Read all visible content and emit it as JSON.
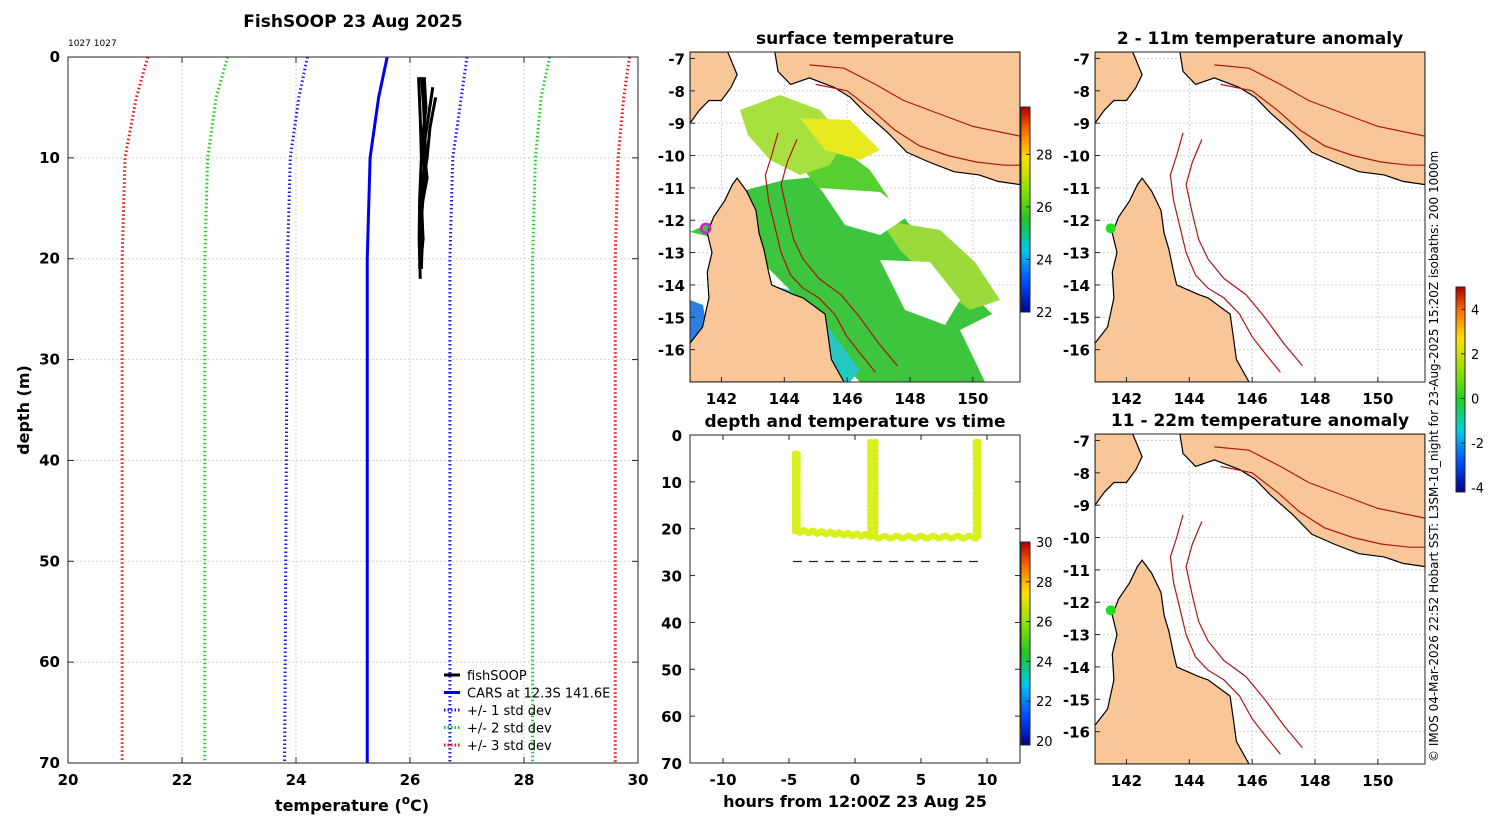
{
  "colors": {
    "land": "#f9c797",
    "obs": "#000000",
    "cars": "#0000ee",
    "std1": "#1a1aee",
    "std2": "#22cc22",
    "std3": "#ee1111",
    "scatter": "#d8f01c",
    "isobath": "#b01515",
    "marker_sst": "#cc22cc",
    "marker_anom": "#22dd22"
  },
  "chart_data": [
    {
      "type": "line",
      "title": "FishSOOP 23 Aug 2025",
      "annotation": "1027 1027",
      "xlabel": "temperature (oC)",
      "ylabel": "depth (m)",
      "xlim": [
        20,
        30
      ],
      "ylim": [
        0,
        70
      ],
      "xticks": [
        "20",
        "22",
        "24",
        "26",
        "28",
        "30"
      ],
      "yticks": [
        "0",
        "10",
        "20",
        "30",
        "40",
        "50",
        "60",
        "70"
      ],
      "legend": [
        "fishSOOP",
        "CARS at 12.3S 141.6E",
        "+/- 1 std dev",
        "+/- 2 std dev",
        "+/- 3 std dev"
      ],
      "legend_position": "bottom-right",
      "series": [
        {
          "name": "CARS",
          "style": "solid",
          "depth": [
            0,
            4,
            10,
            20,
            70
          ],
          "temp": [
            25.6,
            25.45,
            25.3,
            25.25,
            25.25
          ]
        },
        {
          "name": "+1 std",
          "style": "dotted",
          "depth": [
            0,
            4,
            10,
            20,
            70
          ],
          "temp": [
            27.0,
            26.9,
            26.75,
            26.7,
            26.7
          ]
        },
        {
          "name": "-1 std",
          "style": "dotted",
          "depth": [
            0,
            4,
            10,
            20,
            70
          ],
          "temp": [
            24.2,
            24.05,
            23.9,
            23.85,
            23.8
          ]
        },
        {
          "name": "+2 std",
          "style": "dotted",
          "depth": [
            0,
            4,
            10,
            20,
            70
          ],
          "temp": [
            28.45,
            28.3,
            28.2,
            28.15,
            28.15
          ]
        },
        {
          "name": "-2 std",
          "style": "dotted",
          "depth": [
            0,
            4,
            10,
            20,
            70
          ],
          "temp": [
            22.8,
            22.6,
            22.45,
            22.4,
            22.4
          ]
        },
        {
          "name": "+3 std",
          "style": "dotted",
          "depth": [
            0,
            4,
            10,
            20,
            70
          ],
          "temp": [
            29.85,
            29.75,
            29.65,
            29.6,
            29.6
          ]
        },
        {
          "name": "-3 std",
          "style": "dotted",
          "depth": [
            0,
            4,
            10,
            20,
            70
          ],
          "temp": [
            21.4,
            21.2,
            21.0,
            20.95,
            20.95
          ]
        }
      ],
      "profiles": [
        {
          "depth": [
            2,
            6,
            10,
            14,
            18,
            22
          ],
          "temp": [
            26.15,
            26.18,
            26.2,
            26.17,
            26.16,
            26.18
          ]
        },
        {
          "depth": [
            2,
            5,
            8,
            11,
            14,
            17,
            21
          ],
          "temp": [
            26.25,
            26.28,
            26.22,
            26.25,
            26.2,
            26.22,
            26.2
          ]
        },
        {
          "depth": [
            3,
            6,
            9,
            12,
            15,
            18,
            21
          ],
          "temp": [
            26.4,
            26.32,
            26.24,
            26.3,
            26.2,
            26.23,
            26.18
          ]
        },
        {
          "depth": [
            4,
            7,
            10,
            13,
            16,
            20
          ],
          "temp": [
            26.45,
            26.35,
            26.3,
            26.22,
            26.2,
            26.17
          ]
        },
        {
          "depth": [
            2,
            5,
            9,
            13,
            17,
            21
          ],
          "temp": [
            26.2,
            26.24,
            26.27,
            26.24,
            26.19,
            26.17
          ]
        }
      ]
    },
    {
      "type": "heatmap",
      "title": "surface temperature",
      "xticks": [
        "142",
        "144",
        "146",
        "148",
        "150"
      ],
      "yticks": [
        "-7",
        "-8",
        "-9",
        "-10",
        "-11",
        "-12",
        "-13",
        "-14",
        "-15",
        "-16"
      ],
      "xlim": [
        141,
        151.5
      ],
      "ylim": [
        -17,
        -6.8
      ],
      "colorbar": {
        "min": 22,
        "max": 29.8,
        "ticks": [
          "22",
          "24",
          "26",
          "28"
        ]
      },
      "marker": {
        "lon": 141.5,
        "lat": -12.25
      }
    },
    {
      "type": "heatmap",
      "title": "2 - 11m temperature anomaly",
      "xticks": [
        "142",
        "144",
        "146",
        "148",
        "150"
      ],
      "yticks": [
        "-7",
        "-8",
        "-9",
        "-10",
        "-11",
        "-12",
        "-13",
        "-14",
        "-15",
        "-16"
      ],
      "xlim": [
        141,
        151.5
      ],
      "ylim": [
        -17,
        -6.8
      ],
      "marker": {
        "lon": 141.5,
        "lat": -12.25
      }
    },
    {
      "type": "heatmap",
      "title": "11 - 22m temperature anomaly",
      "xticks": [
        "142",
        "144",
        "146",
        "148",
        "150"
      ],
      "yticks": [
        "-7",
        "-8",
        "-9",
        "-10",
        "-11",
        "-12",
        "-13",
        "-14",
        "-15",
        "-16"
      ],
      "xlim": [
        141,
        151.5
      ],
      "ylim": [
        -17,
        -6.8
      ],
      "marker": {
        "lon": 141.5,
        "lat": -12.25
      },
      "colorbar": {
        "min": -4.2,
        "max": 5.0,
        "ticks": [
          "-4",
          "-2",
          "0",
          "2",
          "4"
        ]
      }
    },
    {
      "type": "scatter",
      "title": "depth and temperature vs time",
      "xlabel": "hours from 12:00Z 23 Aug 25",
      "xlim": [
        -12.5,
        12.5
      ],
      "ylim": [
        0,
        70
      ],
      "xticks": [
        "-10",
        "-5",
        "0",
        "5",
        "10"
      ],
      "yticks": [
        "0",
        "10",
        "20",
        "30",
        "40",
        "50",
        "60",
        "70"
      ],
      "bottom_depth": {
        "x": [
          -4.7,
          9.4
        ],
        "depth": 27
      },
      "colorbar": {
        "min": 19.8,
        "max": 30,
        "ticks": [
          "20",
          "22",
          "24",
          "26",
          "28",
          "30"
        ]
      },
      "casts": [
        {
          "t0": -4.55,
          "t1": -4.35,
          "bottom": 20.5,
          "top": 4
        },
        {
          "t0": 1.15,
          "t1": 1.55,
          "bottom": 21.5,
          "top": 1.5
        },
        {
          "t0": 9.15,
          "t1": 9.35,
          "bottom": 21.5,
          "top": 1.5
        }
      ],
      "tows": [
        {
          "t0": -4.35,
          "t1": 1.15,
          "d0": 20.5,
          "d1": 21.5
        },
        {
          "t0": 1.55,
          "t1": 9.15,
          "d0": 21.8,
          "d1": 21.8
        }
      ]
    }
  ],
  "footer": {
    "credit": "© IMOS 04-Mar-2026 22:52 Hobart SST: L3SM-1d_night for 23-Aug-2025 15:20Z isobaths: 200  1000m"
  }
}
